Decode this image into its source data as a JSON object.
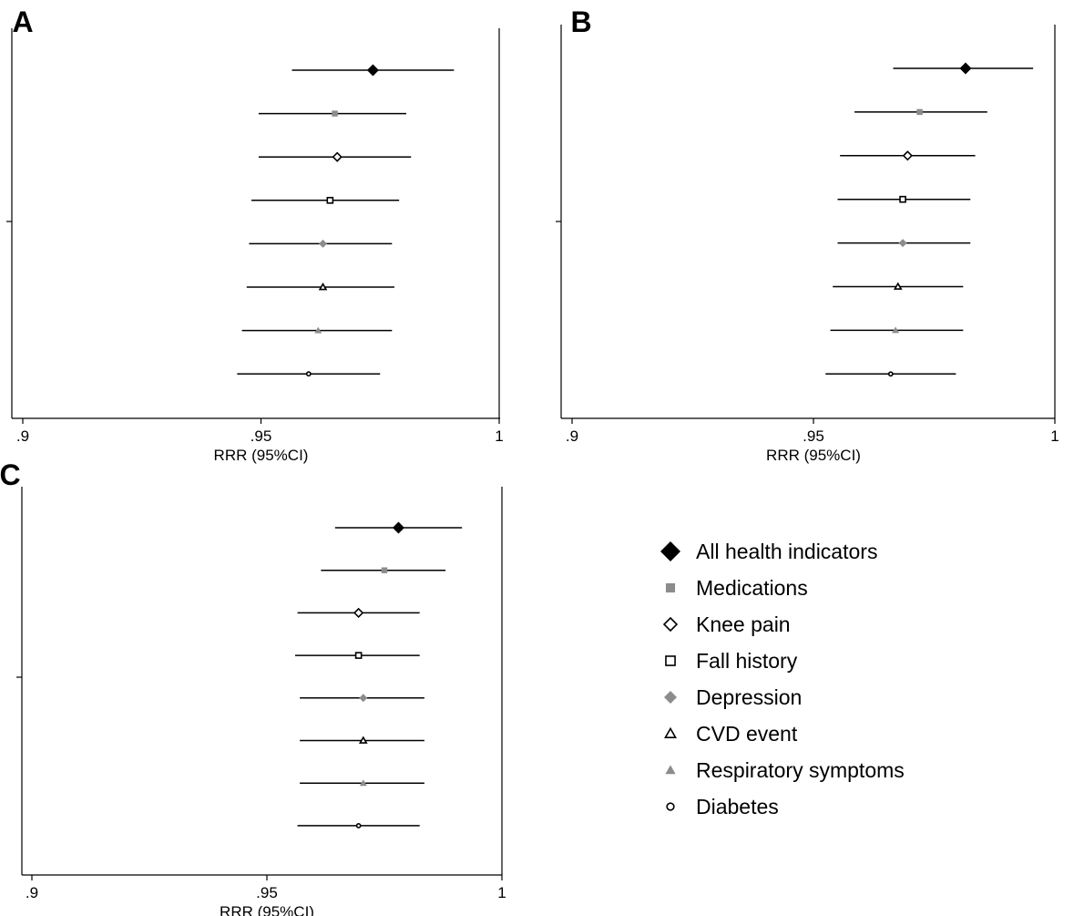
{
  "chart_data": [
    {
      "type": "scatter",
      "panel_label": "A",
      "xlabel": "RRR (95%CI)",
      "ylabel": "",
      "xlim": [
        0.9,
        1.0
      ],
      "xticks": [
        ".9",
        ".95",
        "1"
      ],
      "reference_line": 1.0,
      "grid": false,
      "series": [
        {
          "name": "All health indicators",
          "estimate": 0.9735,
          "ci": [
            0.9565,
            0.9905
          ]
        },
        {
          "name": "Medications",
          "estimate": 0.9655,
          "ci": [
            0.9495,
            0.9805
          ]
        },
        {
          "name": "Knee pain",
          "estimate": 0.966,
          "ci": [
            0.9495,
            0.9815
          ]
        },
        {
          "name": "Fall history",
          "estimate": 0.9645,
          "ci": [
            0.948,
            0.979
          ]
        },
        {
          "name": "Depression",
          "estimate": 0.963,
          "ci": [
            0.9475,
            0.9775
          ]
        },
        {
          "name": "CVD event",
          "estimate": 0.963,
          "ci": [
            0.947,
            0.978
          ]
        },
        {
          "name": "Respiratory symptoms",
          "estimate": 0.962,
          "ci": [
            0.946,
            0.9775
          ]
        },
        {
          "name": "Diabetes",
          "estimate": 0.96,
          "ci": [
            0.945,
            0.975
          ]
        }
      ]
    },
    {
      "type": "scatter",
      "panel_label": "B",
      "xlabel": "RRR (95%CI)",
      "ylabel": "",
      "xlim": [
        0.9,
        1.0
      ],
      "xticks": [
        ".9",
        ".95",
        "1"
      ],
      "reference_line": 1.0,
      "grid": false,
      "series": [
        {
          "name": "All health indicators",
          "estimate": 0.9815,
          "ci": [
            0.9665,
            0.9955
          ]
        },
        {
          "name": "Medications",
          "estimate": 0.972,
          "ci": [
            0.9585,
            0.986
          ]
        },
        {
          "name": "Knee pain",
          "estimate": 0.9695,
          "ci": [
            0.9555,
            0.9835
          ]
        },
        {
          "name": "Fall history",
          "estimate": 0.9685,
          "ci": [
            0.955,
            0.9825
          ]
        },
        {
          "name": "Depression",
          "estimate": 0.9685,
          "ci": [
            0.955,
            0.9825
          ]
        },
        {
          "name": "CVD event",
          "estimate": 0.9675,
          "ci": [
            0.954,
            0.981
          ]
        },
        {
          "name": "Respiratory symptoms",
          "estimate": 0.967,
          "ci": [
            0.9535,
            0.981
          ]
        },
        {
          "name": "Diabetes",
          "estimate": 0.966,
          "ci": [
            0.9525,
            0.9795
          ]
        }
      ]
    },
    {
      "type": "scatter",
      "panel_label": "C",
      "xlabel": "RRR (95%CI)",
      "ylabel": "",
      "xlim": [
        0.9,
        1.0
      ],
      "xticks": [
        ".9",
        ".95",
        "1"
      ],
      "reference_line": 1.0,
      "grid": false,
      "series": [
        {
          "name": "All health indicators",
          "estimate": 0.978,
          "ci": [
            0.9645,
            0.9915
          ]
        },
        {
          "name": "Medications",
          "estimate": 0.975,
          "ci": [
            0.9615,
            0.988
          ]
        },
        {
          "name": "Knee pain",
          "estimate": 0.9695,
          "ci": [
            0.9565,
            0.9825
          ]
        },
        {
          "name": "Fall history",
          "estimate": 0.9695,
          "ci": [
            0.956,
            0.9825
          ]
        },
        {
          "name": "Depression",
          "estimate": 0.9705,
          "ci": [
            0.957,
            0.9835
          ]
        },
        {
          "name": "CVD event",
          "estimate": 0.9705,
          "ci": [
            0.957,
            0.9835
          ]
        },
        {
          "name": "Respiratory symptoms",
          "estimate": 0.9705,
          "ci": [
            0.957,
            0.9835
          ]
        },
        {
          "name": "Diabetes",
          "estimate": 0.9695,
          "ci": [
            0.9565,
            0.9825
          ]
        }
      ]
    }
  ],
  "legend": {
    "placement": "bottom-right",
    "items": [
      {
        "label": "All health indicators",
        "marker": "diamond-filled",
        "color": "#000000"
      },
      {
        "label": "Medications",
        "marker": "square-filled",
        "color": "#8c8c8c"
      },
      {
        "label": "Knee pain",
        "marker": "diamond-hollow",
        "color": "#000000"
      },
      {
        "label": "Fall history",
        "marker": "square-hollow",
        "color": "#000000"
      },
      {
        "label": "Depression",
        "marker": "diamond-filled",
        "color": "#8c8c8c"
      },
      {
        "label": "CVD event",
        "marker": "triangle-hollow",
        "color": "#000000"
      },
      {
        "label": "Respiratory symptoms",
        "marker": "triangle-filled",
        "color": "#8c8c8c"
      },
      {
        "label": "Diabetes",
        "marker": "circle-hollow",
        "color": "#000000"
      }
    ]
  },
  "colors": {
    "line": "#000000",
    "gray_marker": "#8c8c8c",
    "background": "#ffffff"
  }
}
